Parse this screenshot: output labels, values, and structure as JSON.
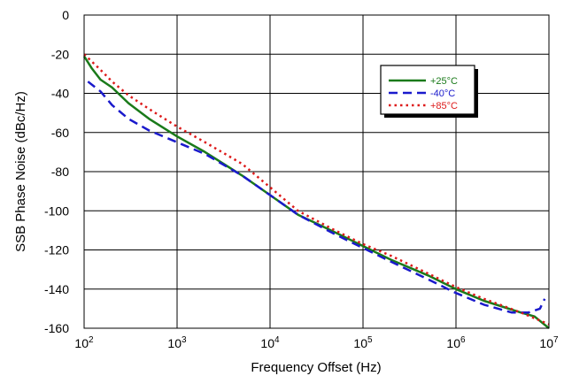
{
  "chart_data": {
    "type": "line",
    "xlabel": "Frequency Offset (Hz)",
    "ylabel": "SSB Phase Noise (dBc/Hz)",
    "x_scale": "log",
    "xlim": [
      100,
      10000000
    ],
    "ylim": [
      -160,
      0
    ],
    "x_ticks": [
      {
        "value": 100,
        "base": "10",
        "exp": "2"
      },
      {
        "value": 1000,
        "base": "10",
        "exp": "3"
      },
      {
        "value": 10000,
        "base": "10",
        "exp": "4"
      },
      {
        "value": 100000,
        "base": "10",
        "exp": "5"
      },
      {
        "value": 1000000,
        "base": "10",
        "exp": "6"
      },
      {
        "value": 10000000,
        "base": "10",
        "exp": "7"
      }
    ],
    "y_ticks": [
      "0",
      "-20",
      "-40",
      "-60",
      "-80",
      "-100",
      "-120",
      "-140",
      "-160"
    ],
    "grid": true,
    "legend_position": "top-right",
    "series": [
      {
        "name": "+25°C",
        "color": "#1a7a1a",
        "dash": "solid",
        "x": [
          100,
          120,
          150,
          200,
          300,
          500,
          1000,
          2000,
          5000,
          10000,
          20000,
          50000,
          100000,
          200000,
          500000,
          1000000,
          2000000,
          5000000,
          7000000,
          10000000
        ],
        "y": [
          -21,
          -27,
          -33,
          -37,
          -45,
          -53,
          -62,
          -70,
          -82,
          -92,
          -102,
          -111,
          -118,
          -125,
          -133,
          -140,
          -146,
          -152,
          -154,
          -160
        ]
      },
      {
        "name": "-40°C",
        "color": "#1a1acc",
        "dash": "dashed",
        "x": [
          110,
          150,
          200,
          300,
          500,
          1000,
          2000,
          5000,
          10000,
          20000,
          50000,
          100000,
          200000,
          500000,
          1000000,
          2000000,
          4000000,
          6000000,
          8000000,
          9000000
        ],
        "y": [
          -34,
          -39,
          -46,
          -53,
          -59,
          -65,
          -71,
          -82,
          -92,
          -102,
          -112,
          -119,
          -126,
          -135,
          -142,
          -148,
          -152,
          -152,
          -150,
          -145
        ]
      },
      {
        "name": "+85°C",
        "color": "#dd1a1a",
        "dash": "dotted",
        "x": [
          100,
          150,
          200,
          300,
          500,
          1000,
          2000,
          5000,
          10000,
          20000,
          50000,
          100000,
          200000,
          500000,
          1000000,
          2000000,
          5000000,
          10000000
        ],
        "y": [
          -20,
          -28,
          -34,
          -41,
          -48,
          -57,
          -65,
          -76,
          -88,
          -100,
          -110,
          -117,
          -123,
          -132,
          -139,
          -145,
          -152,
          -158
        ]
      }
    ]
  }
}
